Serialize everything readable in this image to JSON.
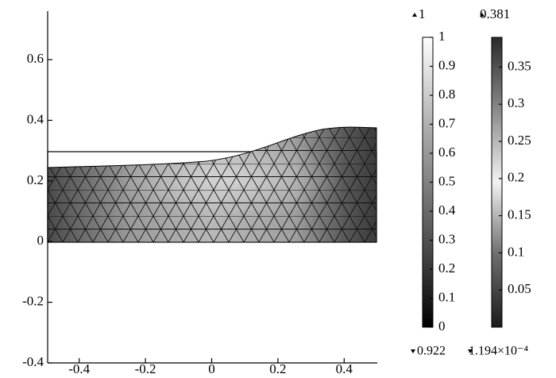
{
  "chart_data": {
    "type": "surface",
    "xlim": [
      -0.5,
      0.5
    ],
    "xticks": [
      -0.4,
      -0.2,
      0,
      0.2,
      0.4
    ],
    "ylim": [
      -0.4,
      0.76
    ],
    "yticks": [
      -0.4,
      -0.2,
      0,
      0.2,
      0.4,
      0.6
    ],
    "colorbars": [
      {
        "lim": [
          0,
          1
        ],
        "ticks": [
          0,
          0.1,
          0.2,
          0.3,
          0.4,
          0.5,
          0.6,
          0.7,
          0.8,
          0.9,
          1
        ],
        "max": 1,
        "min": 0.922,
        "colors": [
          "#000000",
          "#5a5a5a",
          "#a8a8a8",
          "#ffffff"
        ]
      },
      {
        "lim": [
          0,
          0.39
        ],
        "ticks": [
          0.05,
          0.1,
          0.15,
          0.2,
          0.25,
          0.3,
          0.35
        ],
        "max": 0.381,
        "min": {
          "value": 0.0001194,
          "label": "1.194×10⁻⁴"
        },
        "colors": [
          "#1a1a1a",
          "#6e6e6e",
          "#f2f2f2",
          "#8a8a8a",
          "#2a2a2a"
        ]
      }
    ]
  }
}
